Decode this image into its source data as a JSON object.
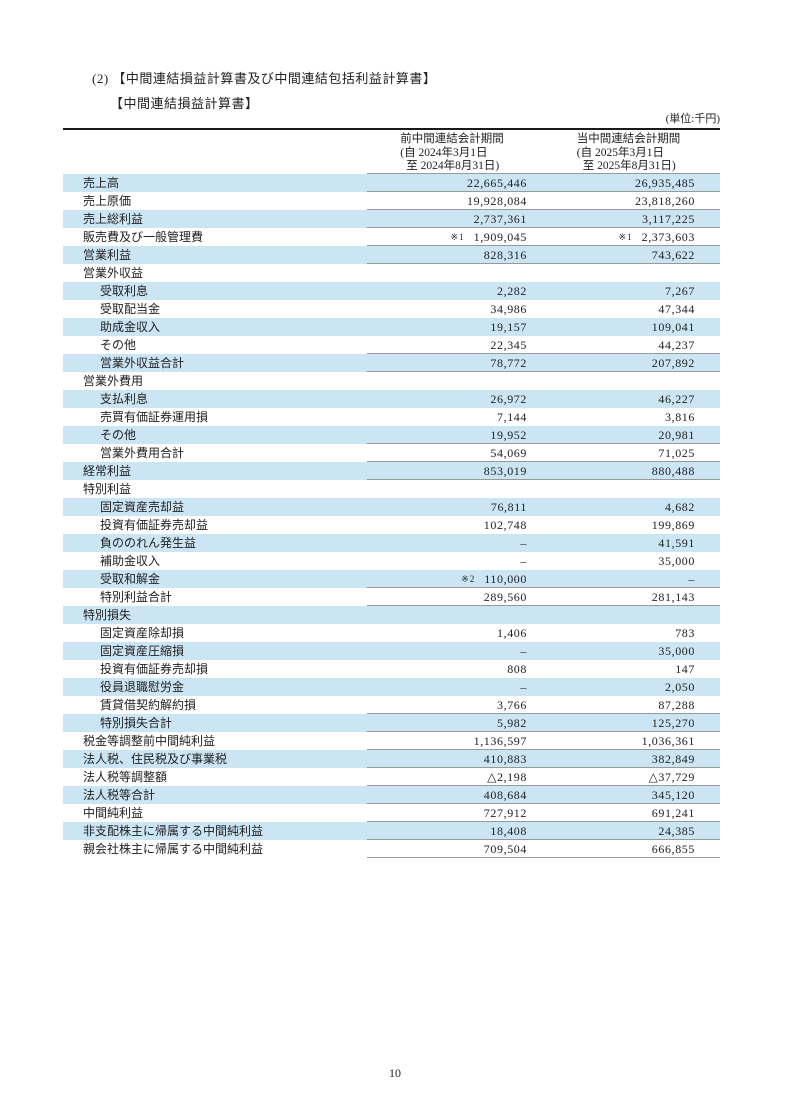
{
  "document": {
    "section_title": "(2) 【中間連結損益計算書及び中間連結包括利益計算書】",
    "statement_title": "【中間連結損益計算書】",
    "unit_note": "(単位:千円)"
  },
  "page": {
    "number": "10"
  },
  "table": {
    "columns": [
      {
        "title": "前中間連結会計期間",
        "period_from": "(自 2024年3月1日",
        "period_to": "至 2024年8月31日)"
      },
      {
        "title": "当中間連結会計期間",
        "period_from": "(自 2025年3月1日",
        "period_to": "至 2025年8月31日)"
      }
    ],
    "colors": {
      "row_highlight": "#cbe5f4",
      "thin_rule": "#999999",
      "thick_rule": "#1a1a1a"
    },
    "rows": [
      {
        "label": "売上高",
        "indent": 0,
        "note1": "",
        "value1": "22,665,446",
        "note2": "",
        "value2": "26,935,485",
        "underline": true
      },
      {
        "label": "売上原価",
        "indent": 0,
        "note1": "",
        "value1": "19,928,084",
        "note2": "",
        "value2": "23,818,260",
        "underline": true
      },
      {
        "label": "売上総利益",
        "indent": 0,
        "note1": "",
        "value1": "2,737,361",
        "note2": "",
        "value2": "3,117,225",
        "underline": true
      },
      {
        "label": "販売費及び一般管理費",
        "indent": 0,
        "note1": "※1",
        "value1": "1,909,045",
        "note2": "※1",
        "value2": "2,373,603",
        "underline": true
      },
      {
        "label": "営業利益",
        "indent": 0,
        "note1": "",
        "value1": "828,316",
        "note2": "",
        "value2": "743,622",
        "underline": true
      },
      {
        "label": "営業外収益",
        "indent": 0,
        "note1": "",
        "value1": "",
        "note2": "",
        "value2": "",
        "underline": false
      },
      {
        "label": "受取利息",
        "indent": 1,
        "note1": "",
        "value1": "2,282",
        "note2": "",
        "value2": "7,267",
        "underline": false
      },
      {
        "label": "受取配当金",
        "indent": 1,
        "note1": "",
        "value1": "34,986",
        "note2": "",
        "value2": "47,344",
        "underline": false
      },
      {
        "label": "助成金収入",
        "indent": 1,
        "note1": "",
        "value1": "19,157",
        "note2": "",
        "value2": "109,041",
        "underline": false
      },
      {
        "label": "その他",
        "indent": 1,
        "note1": "",
        "value1": "22,345",
        "note2": "",
        "value2": "44,237",
        "underline": true
      },
      {
        "label": "営業外収益合計",
        "indent": 1,
        "note1": "",
        "value1": "78,772",
        "note2": "",
        "value2": "207,892",
        "underline": true
      },
      {
        "label": "営業外費用",
        "indent": 0,
        "note1": "",
        "value1": "",
        "note2": "",
        "value2": "",
        "underline": false
      },
      {
        "label": "支払利息",
        "indent": 1,
        "note1": "",
        "value1": "26,972",
        "note2": "",
        "value2": "46,227",
        "underline": false
      },
      {
        "label": "売買有価証券運用損",
        "indent": 1,
        "note1": "",
        "value1": "7,144",
        "note2": "",
        "value2": "3,816",
        "underline": false
      },
      {
        "label": "その他",
        "indent": 1,
        "note1": "",
        "value1": "19,952",
        "note2": "",
        "value2": "20,981",
        "underline": true
      },
      {
        "label": "営業外費用合計",
        "indent": 1,
        "note1": "",
        "value1": "54,069",
        "note2": "",
        "value2": "71,025",
        "underline": true
      },
      {
        "label": "経常利益",
        "indent": 0,
        "note1": "",
        "value1": "853,019",
        "note2": "",
        "value2": "880,488",
        "underline": true
      },
      {
        "label": "特別利益",
        "indent": 0,
        "note1": "",
        "value1": "",
        "note2": "",
        "value2": "",
        "underline": false
      },
      {
        "label": "固定資産売却益",
        "indent": 1,
        "note1": "",
        "value1": "76,811",
        "note2": "",
        "value2": "4,682",
        "underline": false
      },
      {
        "label": "投資有価証券売却益",
        "indent": 1,
        "note1": "",
        "value1": "102,748",
        "note2": "",
        "value2": "199,869",
        "underline": false
      },
      {
        "label": "負ののれん発生益",
        "indent": 1,
        "note1": "",
        "value1": "–",
        "note2": "",
        "value2": "41,591",
        "underline": false
      },
      {
        "label": "補助金収入",
        "indent": 1,
        "note1": "",
        "value1": "–",
        "note2": "",
        "value2": "35,000",
        "underline": false
      },
      {
        "label": "受取和解金",
        "indent": 1,
        "note1": "※2",
        "value1": "110,000",
        "note2": "",
        "value2": "–",
        "underline": true
      },
      {
        "label": "特別利益合計",
        "indent": 1,
        "note1": "",
        "value1": "289,560",
        "note2": "",
        "value2": "281,143",
        "underline": true
      },
      {
        "label": "特別損失",
        "indent": 0,
        "note1": "",
        "value1": "",
        "note2": "",
        "value2": "",
        "underline": false
      },
      {
        "label": "固定資産除却損",
        "indent": 1,
        "note1": "",
        "value1": "1,406",
        "note2": "",
        "value2": "783",
        "underline": false
      },
      {
        "label": "固定資産圧縮損",
        "indent": 1,
        "note1": "",
        "value1": "–",
        "note2": "",
        "value2": "35,000",
        "underline": false
      },
      {
        "label": "投資有価証券売却損",
        "indent": 1,
        "note1": "",
        "value1": "808",
        "note2": "",
        "value2": "147",
        "underline": false
      },
      {
        "label": "役員退職慰労金",
        "indent": 1,
        "note1": "",
        "value1": "–",
        "note2": "",
        "value2": "2,050",
        "underline": false
      },
      {
        "label": "賃貸借契約解約損",
        "indent": 1,
        "note1": "",
        "value1": "3,766",
        "note2": "",
        "value2": "87,288",
        "underline": true
      },
      {
        "label": "特別損失合計",
        "indent": 1,
        "note1": "",
        "value1": "5,982",
        "note2": "",
        "value2": "125,270",
        "underline": true
      },
      {
        "label": "税金等調整前中間純利益",
        "indent": 0,
        "note1": "",
        "value1": "1,136,597",
        "note2": "",
        "value2": "1,036,361",
        "underline": true
      },
      {
        "label": "法人税、住民税及び事業税",
        "indent": 0,
        "note1": "",
        "value1": "410,883",
        "note2": "",
        "value2": "382,849",
        "underline": true
      },
      {
        "label": "法人税等調整額",
        "indent": 0,
        "note1": "",
        "value1": "△2,198",
        "note2": "",
        "value2": "△37,729",
        "underline": true
      },
      {
        "label": "法人税等合計",
        "indent": 0,
        "note1": "",
        "value1": "408,684",
        "note2": "",
        "value2": "345,120",
        "underline": true
      },
      {
        "label": "中間純利益",
        "indent": 0,
        "note1": "",
        "value1": "727,912",
        "note2": "",
        "value2": "691,241",
        "underline": true
      },
      {
        "label": "非支配株主に帰属する中間純利益",
        "indent": 0,
        "note1": "",
        "value1": "18,408",
        "note2": "",
        "value2": "24,385",
        "underline": true
      },
      {
        "label": "親会社株主に帰属する中間純利益",
        "indent": 0,
        "note1": "",
        "value1": "709,504",
        "note2": "",
        "value2": "666,855",
        "underline": true
      }
    ]
  }
}
